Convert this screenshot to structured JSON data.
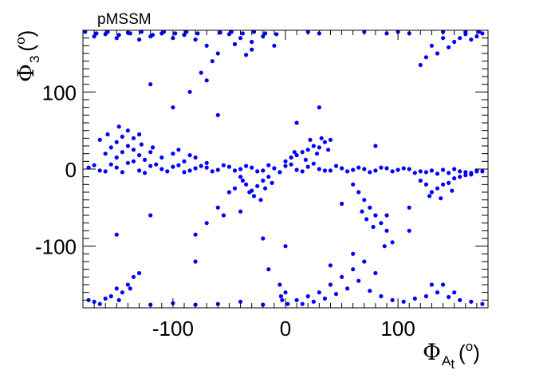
{
  "chart_data": {
    "type": "scatter",
    "title": "pMSSM",
    "xlabel": {
      "symbol": "Φ",
      "sub": "A",
      "subsub": "t",
      "unit_open": "(",
      "unit_deg": "o",
      "unit_close": ")"
    },
    "ylabel": {
      "symbol": "Φ",
      "sub": "3",
      "unit_open": "(",
      "unit_deg": "o",
      "unit_close": ")"
    },
    "xlim": [
      -180,
      180
    ],
    "ylim": [
      -180,
      180
    ],
    "x_ticks": [
      {
        "value": -100,
        "label": "-100"
      },
      {
        "value": 0,
        "label": "0"
      },
      {
        "value": 100,
        "label": "100"
      }
    ],
    "y_ticks": [
      {
        "value": -100,
        "label": "-100"
      },
      {
        "value": 0,
        "label": "0"
      },
      {
        "value": 100,
        "label": "100"
      }
    ],
    "marker_color": "#0000ff",
    "grid": false,
    "points": [
      [
        -170,
        5
      ],
      [
        -160,
        -3
      ],
      [
        -150,
        2
      ],
      [
        -140,
        8
      ],
      [
        -130,
        -2
      ],
      [
        -120,
        4
      ],
      [
        -110,
        0
      ],
      [
        -100,
        3
      ],
      [
        -90,
        -4
      ],
      [
        -80,
        1
      ],
      [
        -70,
        2
      ],
      [
        -60,
        -1
      ],
      [
        -50,
        3
      ],
      [
        -40,
        0
      ],
      [
        -30,
        2
      ],
      [
        -20,
        -2
      ],
      [
        -10,
        1
      ],
      [
        0,
        4
      ],
      [
        10,
        -1
      ],
      [
        20,
        3
      ],
      [
        30,
        0
      ],
      [
        40,
        -2
      ],
      [
        50,
        1
      ],
      [
        60,
        -1
      ],
      [
        70,
        0
      ],
      [
        80,
        -2
      ],
      [
        90,
        1
      ],
      [
        100,
        -1
      ],
      [
        110,
        0
      ],
      [
        120,
        -3
      ],
      [
        130,
        -2
      ],
      [
        140,
        -1
      ],
      [
        150,
        0
      ],
      [
        160,
        -4
      ],
      [
        170,
        -2
      ],
      [
        -175,
        2
      ],
      [
        -165,
        -2
      ],
      [
        -155,
        6
      ],
      [
        -145,
        -4
      ],
      [
        -135,
        10
      ],
      [
        -125,
        -5
      ],
      [
        -115,
        6
      ],
      [
        -105,
        -3
      ],
      [
        -95,
        5
      ],
      [
        -85,
        -2
      ],
      [
        -75,
        4
      ],
      [
        -65,
        -3
      ],
      [
        -55,
        5
      ],
      [
        -45,
        -2
      ],
      [
        -35,
        4
      ],
      [
        -25,
        -3
      ],
      [
        -15,
        5
      ],
      [
        -5,
        -4
      ],
      [
        5,
        6
      ],
      [
        15,
        -3
      ],
      [
        25,
        7
      ],
      [
        35,
        -2
      ],
      [
        45,
        4
      ],
      [
        55,
        -3
      ],
      [
        65,
        2
      ],
      [
        75,
        -4
      ],
      [
        85,
        2
      ],
      [
        95,
        -3
      ],
      [
        105,
        1
      ],
      [
        115,
        -5
      ],
      [
        125,
        -4
      ],
      [
        135,
        -6
      ],
      [
        145,
        -5
      ],
      [
        155,
        -3
      ],
      [
        165,
        -7
      ],
      [
        175,
        -3
      ],
      [
        -160,
        20
      ],
      [
        -155,
        28
      ],
      [
        -150,
        35
      ],
      [
        -145,
        42
      ],
      [
        -140,
        30
      ],
      [
        -135,
        25
      ],
      [
        -130,
        18
      ],
      [
        -125,
        12
      ],
      [
        -150,
        15
      ],
      [
        -145,
        22
      ],
      [
        -158,
        45
      ],
      [
        -140,
        50
      ],
      [
        -135,
        40
      ],
      [
        -128,
        32
      ],
      [
        -120,
        22
      ],
      [
        -165,
        38
      ],
      [
        -148,
        55
      ],
      [
        -130,
        45
      ],
      [
        -118,
        28
      ],
      [
        -110,
        15
      ],
      [
        -100,
        20
      ],
      [
        -90,
        10
      ],
      [
        -80,
        15
      ],
      [
        -70,
        8
      ],
      [
        -95,
        25
      ],
      [
        -85,
        18
      ],
      [
        -40,
        -10
      ],
      [
        -35,
        -20
      ],
      [
        -30,
        -28
      ],
      [
        -25,
        -22
      ],
      [
        -20,
        -15
      ],
      [
        -15,
        -10
      ],
      [
        -38,
        -15
      ],
      [
        -28,
        -35
      ],
      [
        -22,
        -40
      ],
      [
        -32,
        -30
      ],
      [
        -18,
        -25
      ],
      [
        -12,
        -18
      ],
      [
        -45,
        -25
      ],
      [
        -50,
        -30
      ],
      [
        0,
        10
      ],
      [
        5,
        15
      ],
      [
        10,
        18
      ],
      [
        15,
        22
      ],
      [
        20,
        25
      ],
      [
        25,
        30
      ],
      [
        30,
        28
      ],
      [
        35,
        35
      ],
      [
        40,
        38
      ],
      [
        18,
        12
      ],
      [
        28,
        20
      ],
      [
        38,
        25
      ],
      [
        8,
        22
      ],
      [
        22,
        38
      ],
      [
        32,
        40
      ],
      [
        60,
        -20
      ],
      [
        65,
        -30
      ],
      [
        70,
        -40
      ],
      [
        75,
        -50
      ],
      [
        80,
        -60
      ],
      [
        85,
        -70
      ],
      [
        90,
        -80
      ],
      [
        95,
        -95
      ],
      [
        68,
        -55
      ],
      [
        78,
        -75
      ],
      [
        88,
        -100
      ],
      [
        72,
        -65
      ],
      [
        120,
        -15
      ],
      [
        125,
        -20
      ],
      [
        130,
        -30
      ],
      [
        135,
        -25
      ],
      [
        140,
        -20
      ],
      [
        145,
        -18
      ],
      [
        150,
        -12
      ],
      [
        155,
        -10
      ],
      [
        160,
        -8
      ],
      [
        165,
        -5
      ],
      [
        170,
        -3
      ],
      [
        128,
        -35
      ],
      [
        138,
        -38
      ],
      [
        148,
        -28
      ],
      [
        -60,
        -50
      ],
      [
        -70,
        -70
      ],
      [
        -55,
        -60
      ],
      [
        -80,
        -85
      ],
      [
        -170,
        172
      ],
      [
        -160,
        175
      ],
      [
        -150,
        170
      ],
      [
        -140,
        177
      ],
      [
        -130,
        168
      ],
      [
        -120,
        172
      ],
      [
        -110,
        176
      ],
      [
        -100,
        170
      ],
      [
        -90,
        174
      ],
      [
        -80,
        168
      ],
      [
        -70,
        160
      ],
      [
        -60,
        150
      ],
      [
        -50,
        175
      ],
      [
        -40,
        170
      ],
      [
        -30,
        165
      ],
      [
        -20,
        172
      ],
      [
        -10,
        160
      ],
      [
        -30,
        155
      ],
      [
        -35,
        148
      ],
      [
        -45,
        162
      ],
      [
        -65,
        140
      ],
      [
        -75,
        125
      ],
      [
        -85,
        100
      ],
      [
        -70,
        115
      ],
      [
        -178,
        178
      ],
      [
        -168,
        176
      ],
      [
        -158,
        178
      ],
      [
        -148,
        174
      ],
      [
        -138,
        176
      ],
      [
        -128,
        178
      ],
      [
        -118,
        174
      ],
      [
        -108,
        178
      ],
      [
        -98,
        176
      ],
      [
        -88,
        178
      ],
      [
        -78,
        176
      ],
      [
        -58,
        177
      ],
      [
        -48,
        178
      ],
      [
        -38,
        176
      ],
      [
        -28,
        178
      ],
      [
        -18,
        176
      ],
      [
        -8,
        175
      ],
      [
        130,
        160
      ],
      [
        140,
        170
      ],
      [
        150,
        165
      ],
      [
        160,
        175
      ],
      [
        170,
        172
      ],
      [
        135,
        150
      ],
      [
        145,
        158
      ],
      [
        155,
        170
      ],
      [
        165,
        168
      ],
      [
        175,
        176
      ],
      [
        125,
        145
      ],
      [
        120,
        135
      ],
      [
        140,
        178
      ],
      [
        160,
        178
      ],
      [
        172,
        178
      ],
      [
        20,
        178
      ],
      [
        30,
        176
      ],
      [
        70,
        178
      ],
      [
        90,
        176
      ],
      [
        100,
        178
      ],
      [
        110,
        176
      ],
      [
        -170,
        -172
      ],
      [
        -160,
        -168
      ],
      [
        -150,
        -155
      ],
      [
        -145,
        -160
      ],
      [
        -140,
        -150
      ],
      [
        -135,
        -140
      ],
      [
        -155,
        -165
      ],
      [
        -165,
        -175
      ],
      [
        -175,
        -170
      ],
      [
        -130,
        -135
      ],
      [
        -148,
        -170
      ],
      [
        -138,
        -155
      ],
      [
        -120,
        -176
      ],
      [
        -100,
        -174
      ],
      [
        -80,
        -176
      ],
      [
        -60,
        -175
      ],
      [
        -40,
        -172
      ],
      [
        -20,
        -176
      ],
      [
        -5,
        -150
      ],
      [
        0,
        -160
      ],
      [
        -3,
        -170
      ],
      [
        2,
        -175
      ],
      [
        -4,
        -165
      ],
      [
        10,
        -170
      ],
      [
        20,
        -165
      ],
      [
        30,
        -160
      ],
      [
        40,
        -150
      ],
      [
        50,
        -140
      ],
      [
        60,
        -130
      ],
      [
        70,
        -120
      ],
      [
        80,
        -135
      ],
      [
        15,
        -175
      ],
      [
        25,
        -172
      ],
      [
        35,
        -168
      ],
      [
        45,
        -162
      ],
      [
        55,
        -155
      ],
      [
        65,
        -145
      ],
      [
        75,
        -158
      ],
      [
        85,
        -165
      ],
      [
        95,
        -170
      ],
      [
        105,
        -172
      ],
      [
        115,
        -168
      ],
      [
        125,
        -165
      ],
      [
        135,
        -160
      ],
      [
        145,
        -166
      ],
      [
        155,
        -170
      ],
      [
        165,
        -172
      ],
      [
        175,
        -175
      ],
      [
        140,
        -150
      ],
      [
        150,
        -160
      ],
      [
        130,
        -150
      ],
      [
        -20,
        -90
      ],
      [
        -15,
        -130
      ],
      [
        0,
        -100
      ],
      [
        60,
        -110
      ],
      [
        40,
        -125
      ],
      [
        -150,
        -85
      ],
      [
        -120,
        -60
      ],
      [
        -100,
        80
      ],
      [
        -60,
        70
      ],
      [
        -40,
        -55
      ],
      [
        10,
        60
      ],
      [
        30,
        80
      ],
      [
        50,
        -45
      ],
      [
        80,
        30
      ],
      [
        110,
        -80
      ],
      [
        -80,
        -120
      ],
      [
        90,
        -60
      ],
      [
        -120,
        110
      ],
      [
        110,
        -50
      ]
    ]
  }
}
